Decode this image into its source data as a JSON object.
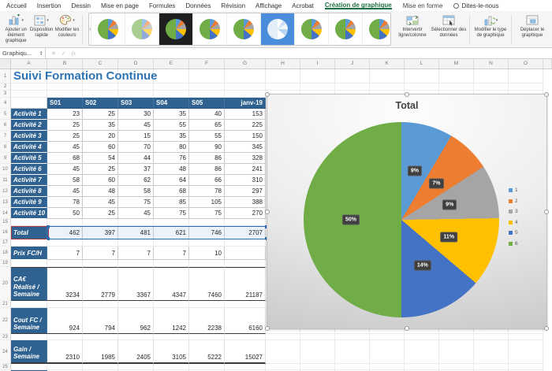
{
  "app": {
    "menu_items": [
      "Accueil",
      "Insertion",
      "Dessin",
      "Mise en page",
      "Formules",
      "Données",
      "Révision",
      "Affichage",
      "Acrobat"
    ],
    "contextual_tabs": {
      "active": "Création de graphique",
      "secondary": "Mise en forme",
      "tell_me": "Dites-le-nous"
    },
    "accent_green": "#1d7044"
  },
  "ribbon": {
    "left_buttons": [
      "Ajouter un élément graphique",
      "Disposition rapide",
      "Modifier les couleurs"
    ],
    "right_buttons": [
      "Intervertir ligne/colonne",
      "Sélectionner des données",
      "Modifier le type de graphique",
      "Déplacer le graphique"
    ],
    "gallery_styles": [
      "plain",
      "pale",
      "dark",
      "plain",
      "plain",
      "selected",
      "plain",
      "plain",
      "plain"
    ]
  },
  "formula_bar": {
    "name_box": "Graphiqu..."
  },
  "sheet": {
    "title": "Suivi Formation Continue",
    "column_letters": [
      "A",
      "B",
      "C",
      "D",
      "E",
      "F",
      "G",
      "H",
      "I",
      "J",
      "K",
      "L",
      "M",
      "N",
      "O"
    ],
    "table": {
      "week_headers": [
        "S01",
        "S02",
        "S03",
        "S04",
        "S05",
        "janv-19"
      ],
      "activities": [
        {
          "label": "Activité 1",
          "values": [
            23,
            25,
            30,
            35,
            40,
            153
          ]
        },
        {
          "label": "Activité 2",
          "values": [
            25,
            35,
            45,
            55,
            65,
            225
          ]
        },
        {
          "label": "Activité 3",
          "values": [
            25,
            20,
            15,
            35,
            55,
            150
          ]
        },
        {
          "label": "Activité 4",
          "values": [
            45,
            60,
            70,
            80,
            90,
            345
          ]
        },
        {
          "label": "Activité 5",
          "values": [
            68,
            54,
            44,
            76,
            86,
            328
          ]
        },
        {
          "label": "Activité 6",
          "values": [
            45,
            25,
            37,
            48,
            86,
            241
          ]
        },
        {
          "label": "Activité 7",
          "values": [
            58,
            60,
            62,
            64,
            66,
            310
          ]
        },
        {
          "label": "Activité 8",
          "values": [
            45,
            48,
            58,
            68,
            78,
            297
          ]
        },
        {
          "label": "Activité 9",
          "values": [
            78,
            45,
            75,
            85,
            105,
            388
          ]
        },
        {
          "label": "Activité 10",
          "values": [
            50,
            25,
            45,
            75,
            75,
            270
          ]
        }
      ],
      "total": {
        "label": "Total",
        "values": [
          462,
          397,
          481,
          621,
          746,
          2707
        ]
      },
      "prix_fc_h": {
        "label": "Prix FC/H",
        "values": [
          7,
          7,
          7,
          7,
          10,
          null
        ]
      },
      "ca_realise": {
        "label": "CA€ Réalisé / Semaine",
        "values": [
          3234,
          2779,
          3367,
          4347,
          7460,
          21187
        ]
      },
      "cout_fc": {
        "label": "Cout FC / Semaine",
        "values": [
          924,
          794,
          962,
          1242,
          2238,
          6160
        ]
      },
      "gain": {
        "label": "Gain / Semaine",
        "values": [
          2310,
          1985,
          2405,
          3105,
          5222,
          15027
        ]
      }
    }
  },
  "chart_data": {
    "type": "pie",
    "title": "Total",
    "categories": [
      "1",
      "2",
      "3",
      "4",
      "5",
      "6"
    ],
    "values": [
      462,
      397,
      481,
      621,
      746,
      2707
    ],
    "data_labels": [
      "9%",
      "7%",
      "9%",
      "11%",
      "14%",
      "50%"
    ],
    "colors": [
      "#5b9bd5",
      "#ed7d31",
      "#a5a5a5",
      "#ffc000",
      "#4472c4",
      "#70ad47"
    ],
    "legend_position": "right"
  }
}
